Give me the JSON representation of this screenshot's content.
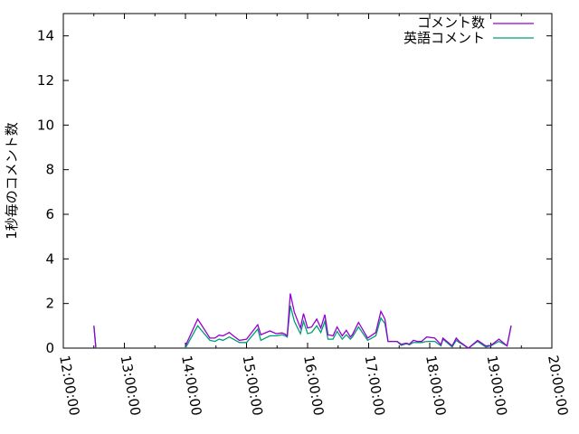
{
  "chart_data": {
    "type": "line",
    "title": "",
    "xlabel": "",
    "ylabel": "1秒毎のコメント数",
    "xlim": [
      "12:00:00",
      "20:00:00"
    ],
    "ylim": [
      0,
      15
    ],
    "xticks": [
      "12:00:00",
      "13:00:00",
      "14:00:00",
      "15:00:00",
      "16:00:00",
      "17:00:00",
      "18:00:00",
      "19:00:00",
      "20:00:00"
    ],
    "yticks": [
      0,
      2,
      4,
      6,
      8,
      10,
      12,
      14
    ],
    "grid": false,
    "legend": "top-right",
    "x": [
      "12:30",
      "12:32",
      null,
      "14:00",
      "14:12",
      "14:24",
      "14:29",
      "14:33",
      "14:37",
      "14:43",
      "14:47",
      "14:53",
      "15:00",
      "15:11",
      "15:14",
      "15:23",
      "15:29",
      "15:35",
      "15:38",
      "15:40",
      "15:43",
      "15:47",
      "15:53",
      "15:56",
      "16:00",
      "16:04",
      "16:09",
      "16:13",
      "16:17",
      "16:20",
      "16:25",
      "16:29",
      "16:34",
      "16:38",
      "16:42",
      "16:44",
      "16:50",
      "16:59",
      "17:07",
      "17:12",
      "17:16",
      "17:19",
      "17:28",
      "17:32",
      "17:37",
      "17:40",
      "17:44",
      "17:48",
      "17:52",
      "17:57",
      "18:05",
      "18:11",
      "18:13",
      "18:22",
      "18:26",
      "18:29",
      "18:38",
      "18:47",
      "18:55",
      "19:00",
      "19:08",
      "19:16",
      "19:20"
    ],
    "series": [
      {
        "name": "コメント数",
        "color": "#9400d3",
        "values": [
          1,
          0,
          null,
          0.1,
          1.3,
          0.45,
          0.45,
          0.58,
          0.55,
          0.7,
          0.55,
          0.35,
          0.4,
          1.05,
          0.6,
          0.77,
          0.65,
          0.68,
          0.62,
          0.55,
          2.45,
          1.6,
          0.9,
          1.55,
          0.9,
          0.95,
          1.3,
          0.9,
          1.5,
          0.6,
          0.55,
          0.95,
          0.55,
          0.8,
          0.5,
          0.6,
          1.15,
          0.45,
          0.7,
          1.65,
          1.3,
          0.3,
          0.3,
          0.17,
          0.22,
          0.18,
          0.35,
          0.3,
          0.3,
          0.5,
          0.45,
          0.15,
          0.45,
          0.1,
          0.45,
          0.3,
          0,
          0.35,
          0.1,
          0.12,
          0.4,
          0.1,
          1.0
        ]
      },
      {
        "name": "英語コメント",
        "color": "#009e73",
        "values": [
          1,
          0,
          null,
          0,
          1.0,
          0.35,
          0.3,
          0.4,
          0.35,
          0.5,
          0.4,
          0.25,
          0.25,
          0.85,
          0.35,
          0.55,
          0.55,
          0.6,
          0.55,
          0.5,
          1.9,
          1.2,
          0.65,
          1.2,
          0.65,
          0.7,
          1.0,
          0.7,
          1.2,
          0.4,
          0.4,
          0.75,
          0.4,
          0.6,
          0.4,
          0.5,
          0.95,
          0.35,
          0.55,
          1.35,
          1.1,
          0.3,
          0.3,
          0.12,
          0.2,
          0.15,
          0.25,
          0.25,
          0.25,
          0.3,
          0.3,
          0.1,
          0.4,
          0.05,
          0.35,
          0.25,
          0,
          0.3,
          0.05,
          0.1,
          0.3,
          0.1,
          1.0
        ]
      }
    ]
  }
}
